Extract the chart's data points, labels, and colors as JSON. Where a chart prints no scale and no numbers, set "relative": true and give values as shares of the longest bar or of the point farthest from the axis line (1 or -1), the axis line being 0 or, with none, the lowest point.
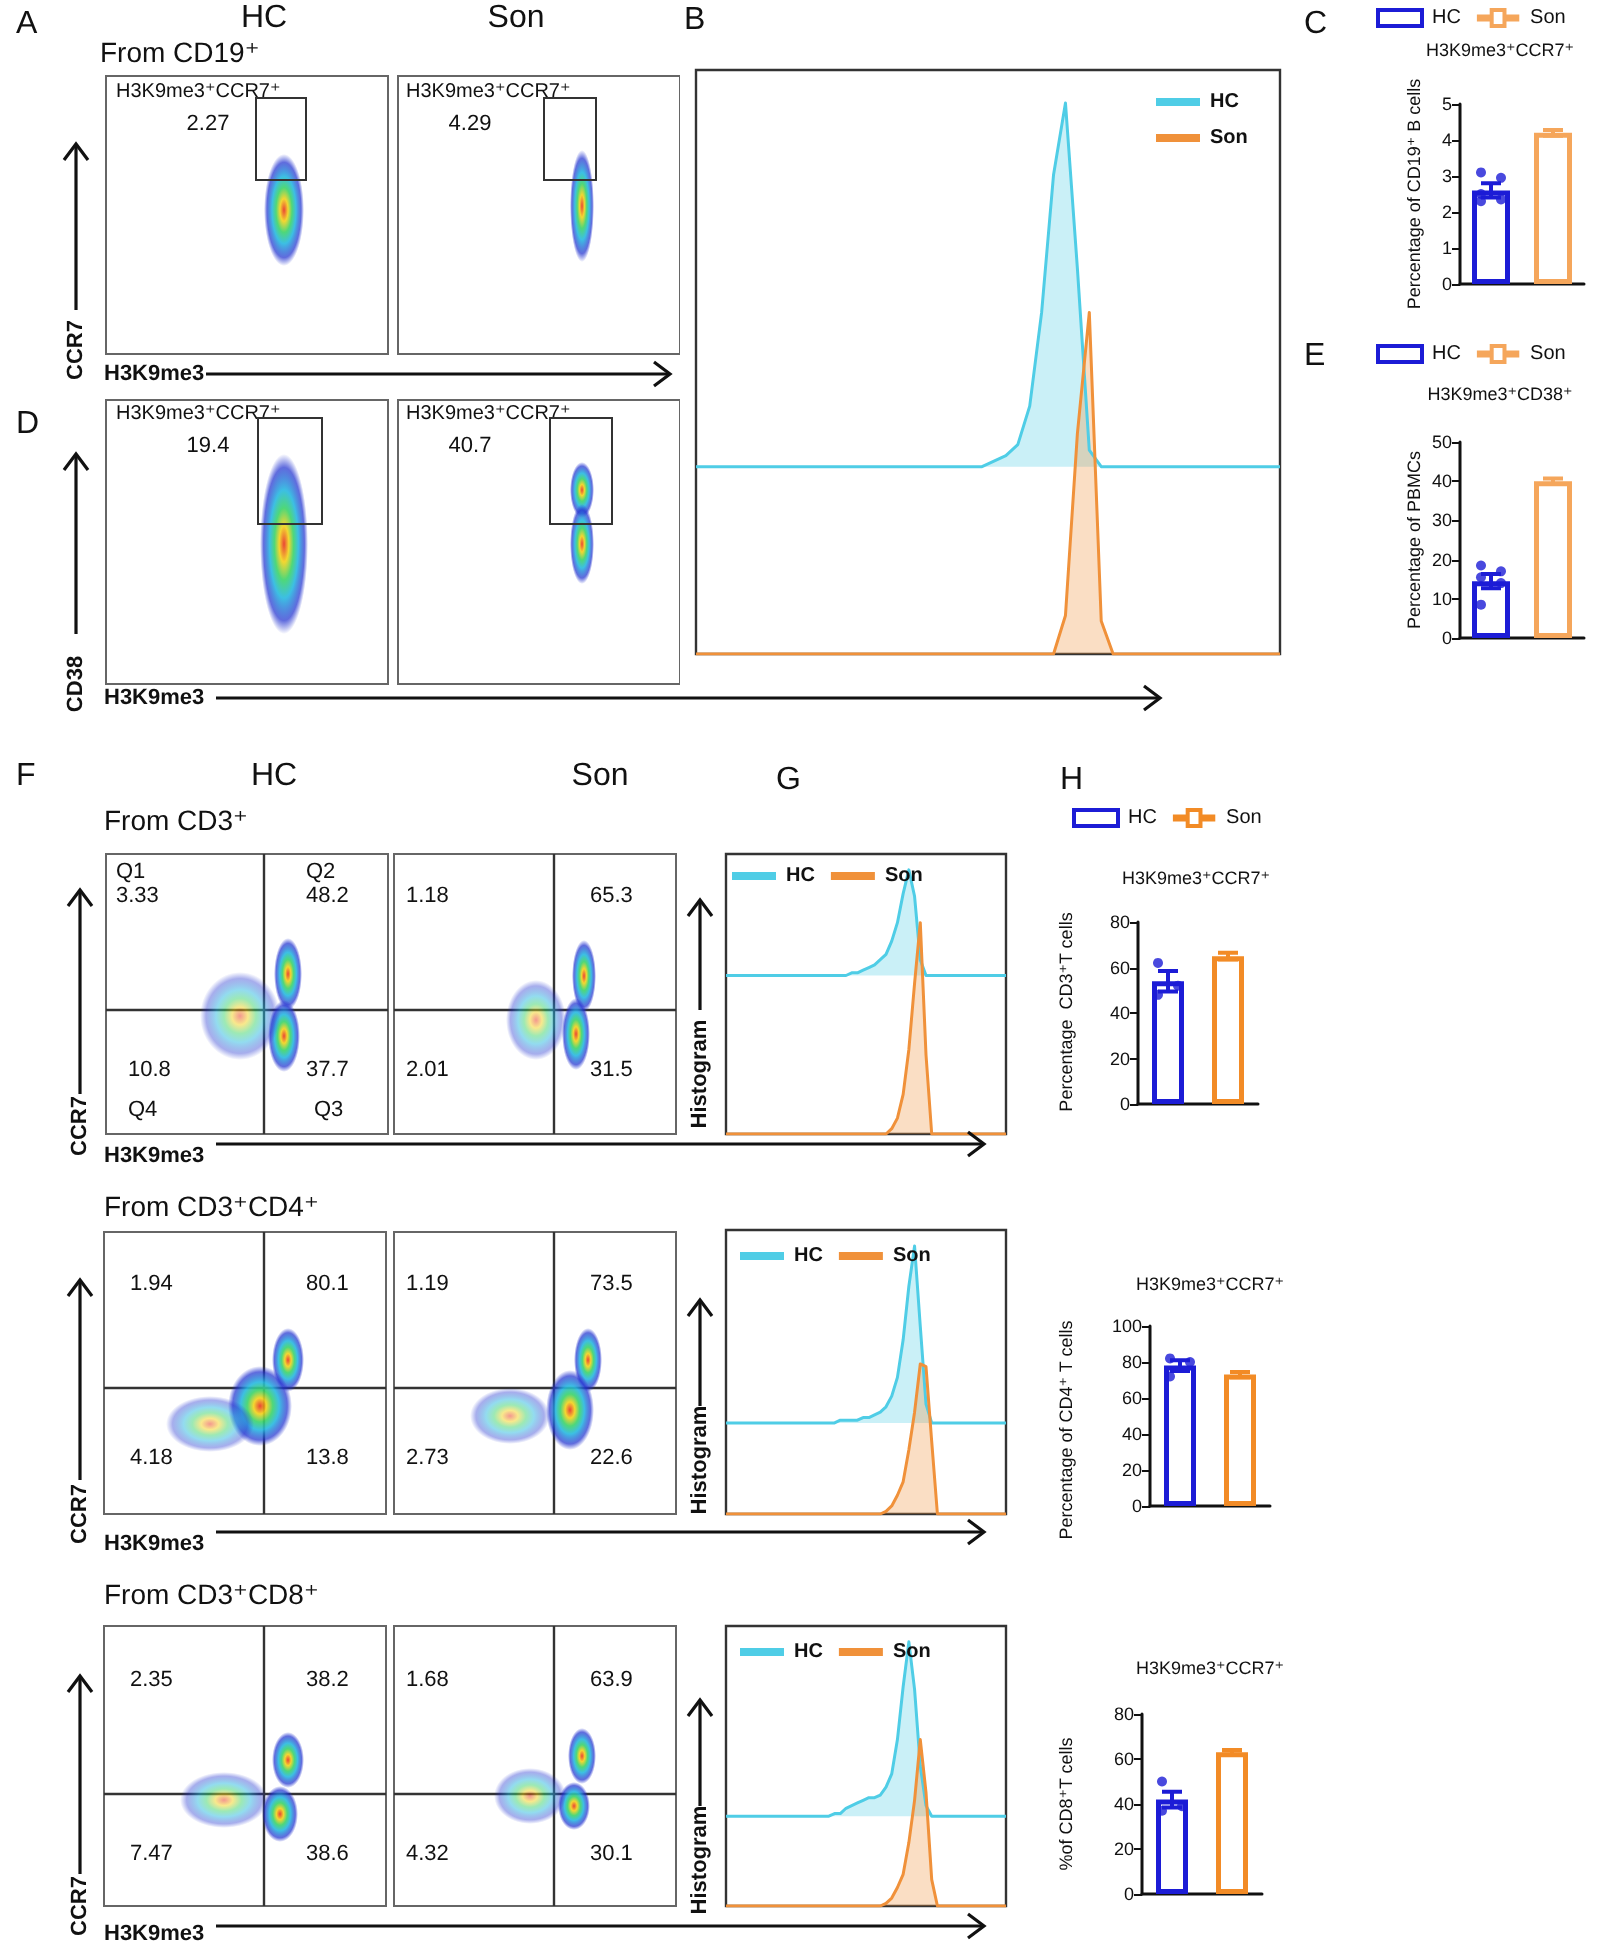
{
  "chart_data": [
    {
      "type": "other",
      "title": "HC",
      "subtitle": "From CD19⁺",
      "xlabel": "H3K9me3",
      "ylabel": "CCR7",
      "annotations": [
        "A",
        "H3K9me3⁺CCR7⁺",
        "2.27"
      ]
    },
    {
      "type": "other",
      "title": "Son",
      "annotations": [
        "H3K9me3⁺CCR7⁺",
        "4.29"
      ]
    },
    {
      "type": "area",
      "relative": true,
      "annotations": [
        "B"
      ],
      "legend": "top right",
      "categories": [
        null,
        null,
        null,
        null,
        null,
        null,
        null,
        null,
        null,
        null,
        null,
        null,
        null,
        null,
        null,
        null,
        null,
        null,
        null,
        null,
        null,
        null,
        null,
        null,
        null,
        null,
        null,
        null,
        null,
        null,
        null,
        null,
        null,
        null,
        null,
        null,
        null,
        null,
        null,
        null,
        null,
        null,
        null,
        null,
        null,
        null,
        null,
        null,
        null,
        null
      ],
      "series": [
        {
          "name": "HC",
          "color": "#4fcde6",
          "values": [
            0.34,
            0.34,
            0.34,
            0.34,
            0.34,
            0.34,
            0.34,
            0.34,
            0.34,
            0.34,
            0.34,
            0.34,
            0.34,
            0.34,
            0.34,
            0.34,
            0.34,
            0.34,
            0.34,
            0.34,
            0.34,
            0.34,
            0.34,
            0.34,
            0.34,
            0.35,
            0.36,
            0.38,
            0.45,
            0.62,
            0.87,
            1,
            0.7,
            0.37,
            0.34,
            0.34,
            0.34,
            0.34,
            0.34,
            0.34,
            0.34,
            0.34,
            0.34,
            0.34,
            0.34,
            0.34,
            0.34,
            0.34,
            0.34,
            0.34
          ]
        },
        {
          "name": "Son",
          "color": "#f0913a",
          "values": [
            0,
            0,
            0,
            0,
            0,
            0,
            0,
            0,
            0,
            0,
            0,
            0,
            0,
            0,
            0,
            0,
            0,
            0,
            0,
            0,
            0,
            0,
            0,
            0,
            0,
            0,
            0,
            0,
            0,
            0,
            0,
            0.07,
            0.4,
            0.62,
            0.06,
            0,
            0,
            0,
            0,
            0,
            0,
            0,
            0,
            0,
            0,
            0,
            0,
            0,
            0,
            0
          ]
        }
      ]
    },
    {
      "type": "bar",
      "title": "H3K9me3⁺CCR7⁺",
      "ylabel": "Percentage of CD19⁺ B cells",
      "annotations": [
        "C"
      ],
      "categories": [
        null,
        null
      ],
      "ylim": [
        0,
        5
      ],
      "yticks": [
        0,
        1,
        2,
        3,
        4,
        5
      ],
      "legend": "top",
      "marker": "circle",
      "series": [
        {
          "name": "HC",
          "color": "#1c1cd6",
          "values": [
            2.6,
            null
          ],
          "errors": [
            0.2,
            null
          ]
        },
        {
          "name": "Son",
          "color": "#f5a65b",
          "values": [
            null,
            4.2
          ],
          "errors": [
            null,
            0.08
          ]
        },
        {
          "type": "scatter",
          "color": "#1c1cd6",
          "values": [
            3.1,
            null
          ]
        },
        {
          "type": "scatter",
          "color": "#1c1cd6",
          "values": [
            2.95,
            null
          ]
        },
        {
          "type": "scatter",
          "color": "#1c1cd6",
          "values": [
            2.5,
            null
          ]
        },
        {
          "type": "scatter",
          "color": "#1c1cd6",
          "values": [
            2.35,
            null
          ]
        },
        {
          "type": "scatter",
          "color": "#1c1cd6",
          "values": [
            2.3,
            null
          ]
        }
      ]
    },
    {
      "type": "other",
      "xlabel": "H3K9me3",
      "ylabel": "CD38",
      "annotations": [
        "D",
        "H3K9me3⁺CCR7⁺",
        "19.4"
      ]
    },
    {
      "type": "other",
      "annotations": [
        "H3K9me3⁺CCR7⁺",
        "40.7"
      ]
    },
    {
      "type": "bar",
      "title": "H3K9me3⁺CD38⁺",
      "ylabel": "Percentage of PBMCs",
      "annotations": [
        "E"
      ],
      "categories": [
        null,
        null
      ],
      "ylim": [
        0,
        50
      ],
      "yticks": [
        0,
        10,
        20,
        30,
        40,
        50
      ],
      "legend": "top",
      "marker": "circle",
      "series": [
        {
          "name": "HC",
          "color": "#1c1cd6",
          "values": [
            14.5,
            null
          ],
          "errors": [
            1.8,
            null
          ]
        },
        {
          "name": "Son",
          "color": "#f5a65b",
          "values": [
            null,
            40
          ],
          "errors": [
            null,
            0.7
          ]
        },
        {
          "type": "scatter",
          "color": "#1c1cd6",
          "values": [
            18.5,
            null
          ]
        },
        {
          "type": "scatter",
          "color": "#1c1cd6",
          "values": [
            17,
            null
          ]
        },
        {
          "type": "scatter",
          "color": "#1c1cd6",
          "values": [
            15.5,
            null
          ]
        },
        {
          "type": "scatter",
          "color": "#1c1cd6",
          "values": [
            14,
            null
          ]
        },
        {
          "type": "scatter",
          "color": "#1c1cd6",
          "values": [
            8.5,
            null
          ]
        }
      ]
    },
    {
      "type": "other",
      "title": "HC",
      "subtitle": "From CD3⁺",
      "xlabel": "H3K9me3",
      "ylabel": "CCR7",
      "annotations": [
        "F",
        "Q1",
        "3.33",
        "Q2",
        "48.2",
        "10.8",
        "37.7",
        "Q4",
        "Q3"
      ]
    },
    {
      "type": "other",
      "title": "Son",
      "annotations": [
        "1.18",
        "65.3",
        "2.01",
        "31.5"
      ]
    },
    {
      "type": "area",
      "relative": true,
      "ylabel": "Histogram",
      "annotations": [
        "G"
      ],
      "legend": "top left",
      "categories": [
        null,
        null,
        null,
        null,
        null,
        null,
        null,
        null,
        null,
        null,
        null,
        null,
        null,
        null,
        null,
        null,
        null,
        null,
        null,
        null,
        null,
        null,
        null,
        null,
        null,
        null,
        null,
        null,
        null,
        null,
        null,
        null,
        null,
        null,
        null,
        null,
        null,
        null,
        null,
        null,
        null,
        null,
        null,
        null,
        null,
        null,
        null,
        null,
        null,
        null
      ],
      "series": [
        {
          "name": "HC",
          "color": "#4fcde6",
          "values": [
            0.6,
            0.6,
            0.6,
            0.6,
            0.6,
            0.6,
            0.6,
            0.6,
            0.6,
            0.6,
            0.6,
            0.6,
            0.6,
            0.6,
            0.6,
            0.6,
            0.6,
            0.6,
            0.6,
            0.6,
            0.6,
            0.6,
            0.61,
            0.61,
            0.62,
            0.63,
            0.64,
            0.66,
            0.68,
            0.73,
            0.8,
            0.91,
            1,
            0.9,
            0.66,
            0.6,
            0.6,
            0.6,
            0.6,
            0.6,
            0.6,
            0.6,
            0.6,
            0.6,
            0.6,
            0.6,
            0.6,
            0.6,
            0.6,
            0.6
          ]
        },
        {
          "name": "Son",
          "color": "#f0913a",
          "values": [
            0,
            0,
            0,
            0,
            0,
            0,
            0,
            0,
            0,
            0,
            0,
            0,
            0,
            0,
            0,
            0,
            0,
            0,
            0,
            0,
            0,
            0,
            0,
            0,
            0,
            0,
            0,
            0,
            0,
            0.02,
            0.06,
            0.15,
            0.32,
            0.57,
            0.8,
            0.3,
            0,
            0,
            0,
            0,
            0,
            0,
            0,
            0,
            0,
            0,
            0,
            0,
            0,
            0
          ]
        }
      ]
    },
    {
      "type": "bar",
      "title": "H3K9me3⁺CCR7⁺",
      "ylabel": "Percentage  CD3⁺T cells",
      "annotations": [
        "H"
      ],
      "categories": [
        null,
        null
      ],
      "ylim": [
        0,
        80
      ],
      "yticks": [
        0,
        20,
        40,
        60,
        80
      ],
      "legend": "top",
      "marker": "circle",
      "series": [
        {
          "name": "HC",
          "color": "#1c1cd6",
          "values": [
            54,
            null
          ],
          "errors": [
            4.5,
            null
          ]
        },
        {
          "name": "Son",
          "color": "#f28b26",
          "values": [
            null,
            65
          ],
          "errors": [
            null,
            1.5
          ]
        },
        {
          "type": "scatter",
          "color": "#1c1cd6",
          "values": [
            62,
            null
          ]
        },
        {
          "type": "scatter",
          "color": "#1c1cd6",
          "values": [
            52,
            null
          ]
        },
        {
          "type": "scatter",
          "color": "#1c1cd6",
          "values": [
            48,
            null
          ]
        }
      ]
    },
    {
      "type": "other",
      "subtitle": "From CD3⁺CD4⁺",
      "xlabel": "H3K9me3",
      "ylabel": "CCR7",
      "annotations": [
        "1.94",
        "80.1",
        "4.18",
        "13.8"
      ]
    },
    {
      "type": "other",
      "annotations": [
        "1.19",
        "73.5",
        "2.73",
        "22.6"
      ]
    },
    {
      "type": "area",
      "relative": true,
      "ylabel": "Histogram",
      "legend": "top left",
      "categories": [
        null,
        null,
        null,
        null,
        null,
        null,
        null,
        null,
        null,
        null,
        null,
        null,
        null,
        null,
        null,
        null,
        null,
        null,
        null,
        null,
        null,
        null,
        null,
        null,
        null,
        null,
        null,
        null,
        null,
        null,
        null,
        null,
        null,
        null,
        null,
        null,
        null,
        null,
        null,
        null,
        null,
        null,
        null,
        null,
        null,
        null,
        null,
        null,
        null,
        null
      ],
      "series": [
        {
          "name": "HC",
          "color": "#4fcde6",
          "values": [
            0.34,
            0.34,
            0.34,
            0.34,
            0.34,
            0.34,
            0.34,
            0.34,
            0.34,
            0.34,
            0.34,
            0.34,
            0.34,
            0.34,
            0.34,
            0.34,
            0.34,
            0.34,
            0.34,
            0.34,
            0.35,
            0.35,
            0.35,
            0.35,
            0.36,
            0.36,
            0.37,
            0.38,
            0.4,
            0.44,
            0.51,
            0.65,
            0.85,
            1,
            0.7,
            0.41,
            0.34,
            0.34,
            0.34,
            0.34,
            0.34,
            0.34,
            0.34,
            0.34,
            0.34,
            0.34,
            0.34,
            0.34,
            0.34,
            0.34
          ]
        },
        {
          "name": "Son",
          "color": "#f0913a",
          "values": [
            0,
            0,
            0,
            0,
            0,
            0,
            0,
            0,
            0,
            0,
            0,
            0,
            0,
            0,
            0,
            0,
            0,
            0,
            0,
            0,
            0,
            0,
            0,
            0,
            0,
            0,
            0,
            0,
            0.01,
            0.03,
            0.07,
            0.12,
            0.24,
            0.38,
            0.56,
            0.55,
            0.27,
            0,
            0,
            0,
            0,
            0,
            0,
            0,
            0,
            0,
            0,
            0,
            0,
            0
          ]
        }
      ]
    },
    {
      "type": "bar",
      "title": "H3K9me3⁺CCR7⁺",
      "ylabel": "Percentage of CD4⁺ T cells",
      "categories": [
        null,
        null
      ],
      "ylim": [
        0,
        100
      ],
      "yticks": [
        0,
        20,
        40,
        60,
        80,
        100
      ],
      "marker": "circle",
      "series": [
        {
          "color": "#1c1cd6",
          "values": [
            78,
            null
          ],
          "errors": [
            3,
            null
          ]
        },
        {
          "color": "#f28b26",
          "values": [
            null,
            73
          ],
          "errors": [
            null,
            1.5
          ]
        },
        {
          "type": "scatter",
          "color": "#1c1cd6",
          "values": [
            82,
            null
          ]
        },
        {
          "type": "scatter",
          "color": "#1c1cd6",
          "values": [
            80,
            null
          ]
        },
        {
          "type": "scatter",
          "color": "#1c1cd6",
          "values": [
            72,
            null
          ]
        }
      ]
    },
    {
      "type": "other",
      "subtitle": "From CD3⁺CD8⁺",
      "xlabel": "H3K9me3",
      "ylabel": "CCR7",
      "annotations": [
        "2.35",
        "38.2",
        "7.47",
        "38.6"
      ]
    },
    {
      "type": "other",
      "annotations": [
        "1.68",
        "63.9",
        "4.32",
        "30.1"
      ]
    },
    {
      "type": "area",
      "relative": true,
      "ylabel": "Histogram",
      "legend": "top left",
      "categories": [
        null,
        null,
        null,
        null,
        null,
        null,
        null,
        null,
        null,
        null,
        null,
        null,
        null,
        null,
        null,
        null,
        null,
        null,
        null,
        null,
        null,
        null,
        null,
        null,
        null,
        null,
        null,
        null,
        null,
        null,
        null,
        null,
        null,
        null,
        null,
        null,
        null,
        null,
        null,
        null,
        null,
        null,
        null,
        null,
        null,
        null,
        null,
        null,
        null,
        null
      ],
      "series": [
        {
          "name": "HC",
          "color": "#4fcde6",
          "values": [
            0.34,
            0.34,
            0.34,
            0.34,
            0.34,
            0.34,
            0.34,
            0.34,
            0.34,
            0.34,
            0.34,
            0.34,
            0.34,
            0.34,
            0.34,
            0.34,
            0.34,
            0.34,
            0.34,
            0.35,
            0.35,
            0.37,
            0.38,
            0.39,
            0.4,
            0.41,
            0.41,
            0.42,
            0.45,
            0.5,
            0.63,
            0.83,
            1,
            0.82,
            0.53,
            0.38,
            0.34,
            0.34,
            0.34,
            0.34,
            0.34,
            0.34,
            0.34,
            0.34,
            0.34,
            0.34,
            0.34,
            0.34,
            0.34,
            0.34
          ]
        },
        {
          "name": "Son",
          "color": "#f0913a",
          "values": [
            0,
            0,
            0,
            0,
            0,
            0,
            0,
            0,
            0,
            0,
            0,
            0,
            0,
            0,
            0,
            0,
            0,
            0,
            0,
            0,
            0,
            0,
            0,
            0,
            0,
            0,
            0,
            0,
            0.01,
            0.03,
            0.07,
            0.12,
            0.24,
            0.4,
            0.63,
            0.43,
            0.1,
            0,
            0,
            0,
            0,
            0,
            0,
            0,
            0,
            0,
            0,
            0,
            0,
            0
          ]
        }
      ]
    },
    {
      "type": "bar",
      "title": "H3K9me3⁺CCR7⁺",
      "ylabel": "%of CD8⁺T cells",
      "categories": [
        null,
        null
      ],
      "ylim": [
        0,
        80
      ],
      "yticks": [
        0,
        20,
        40,
        60,
        80
      ],
      "marker": "circle",
      "series": [
        {
          "color": "#1c1cd6",
          "values": [
            42,
            null
          ],
          "errors": [
            3.5,
            null
          ]
        },
        {
          "color": "#f28b26",
          "values": [
            null,
            63
          ],
          "errors": [
            null,
            1
          ]
        },
        {
          "type": "scatter",
          "color": "#1c1cd6",
          "values": [
            50,
            null
          ]
        },
        {
          "type": "scatter",
          "color": "#1c1cd6",
          "values": [
            39,
            null
          ]
        },
        {
          "type": "scatter",
          "color": "#1c1cd6",
          "values": [
            37,
            null
          ]
        }
      ]
    }
  ]
}
